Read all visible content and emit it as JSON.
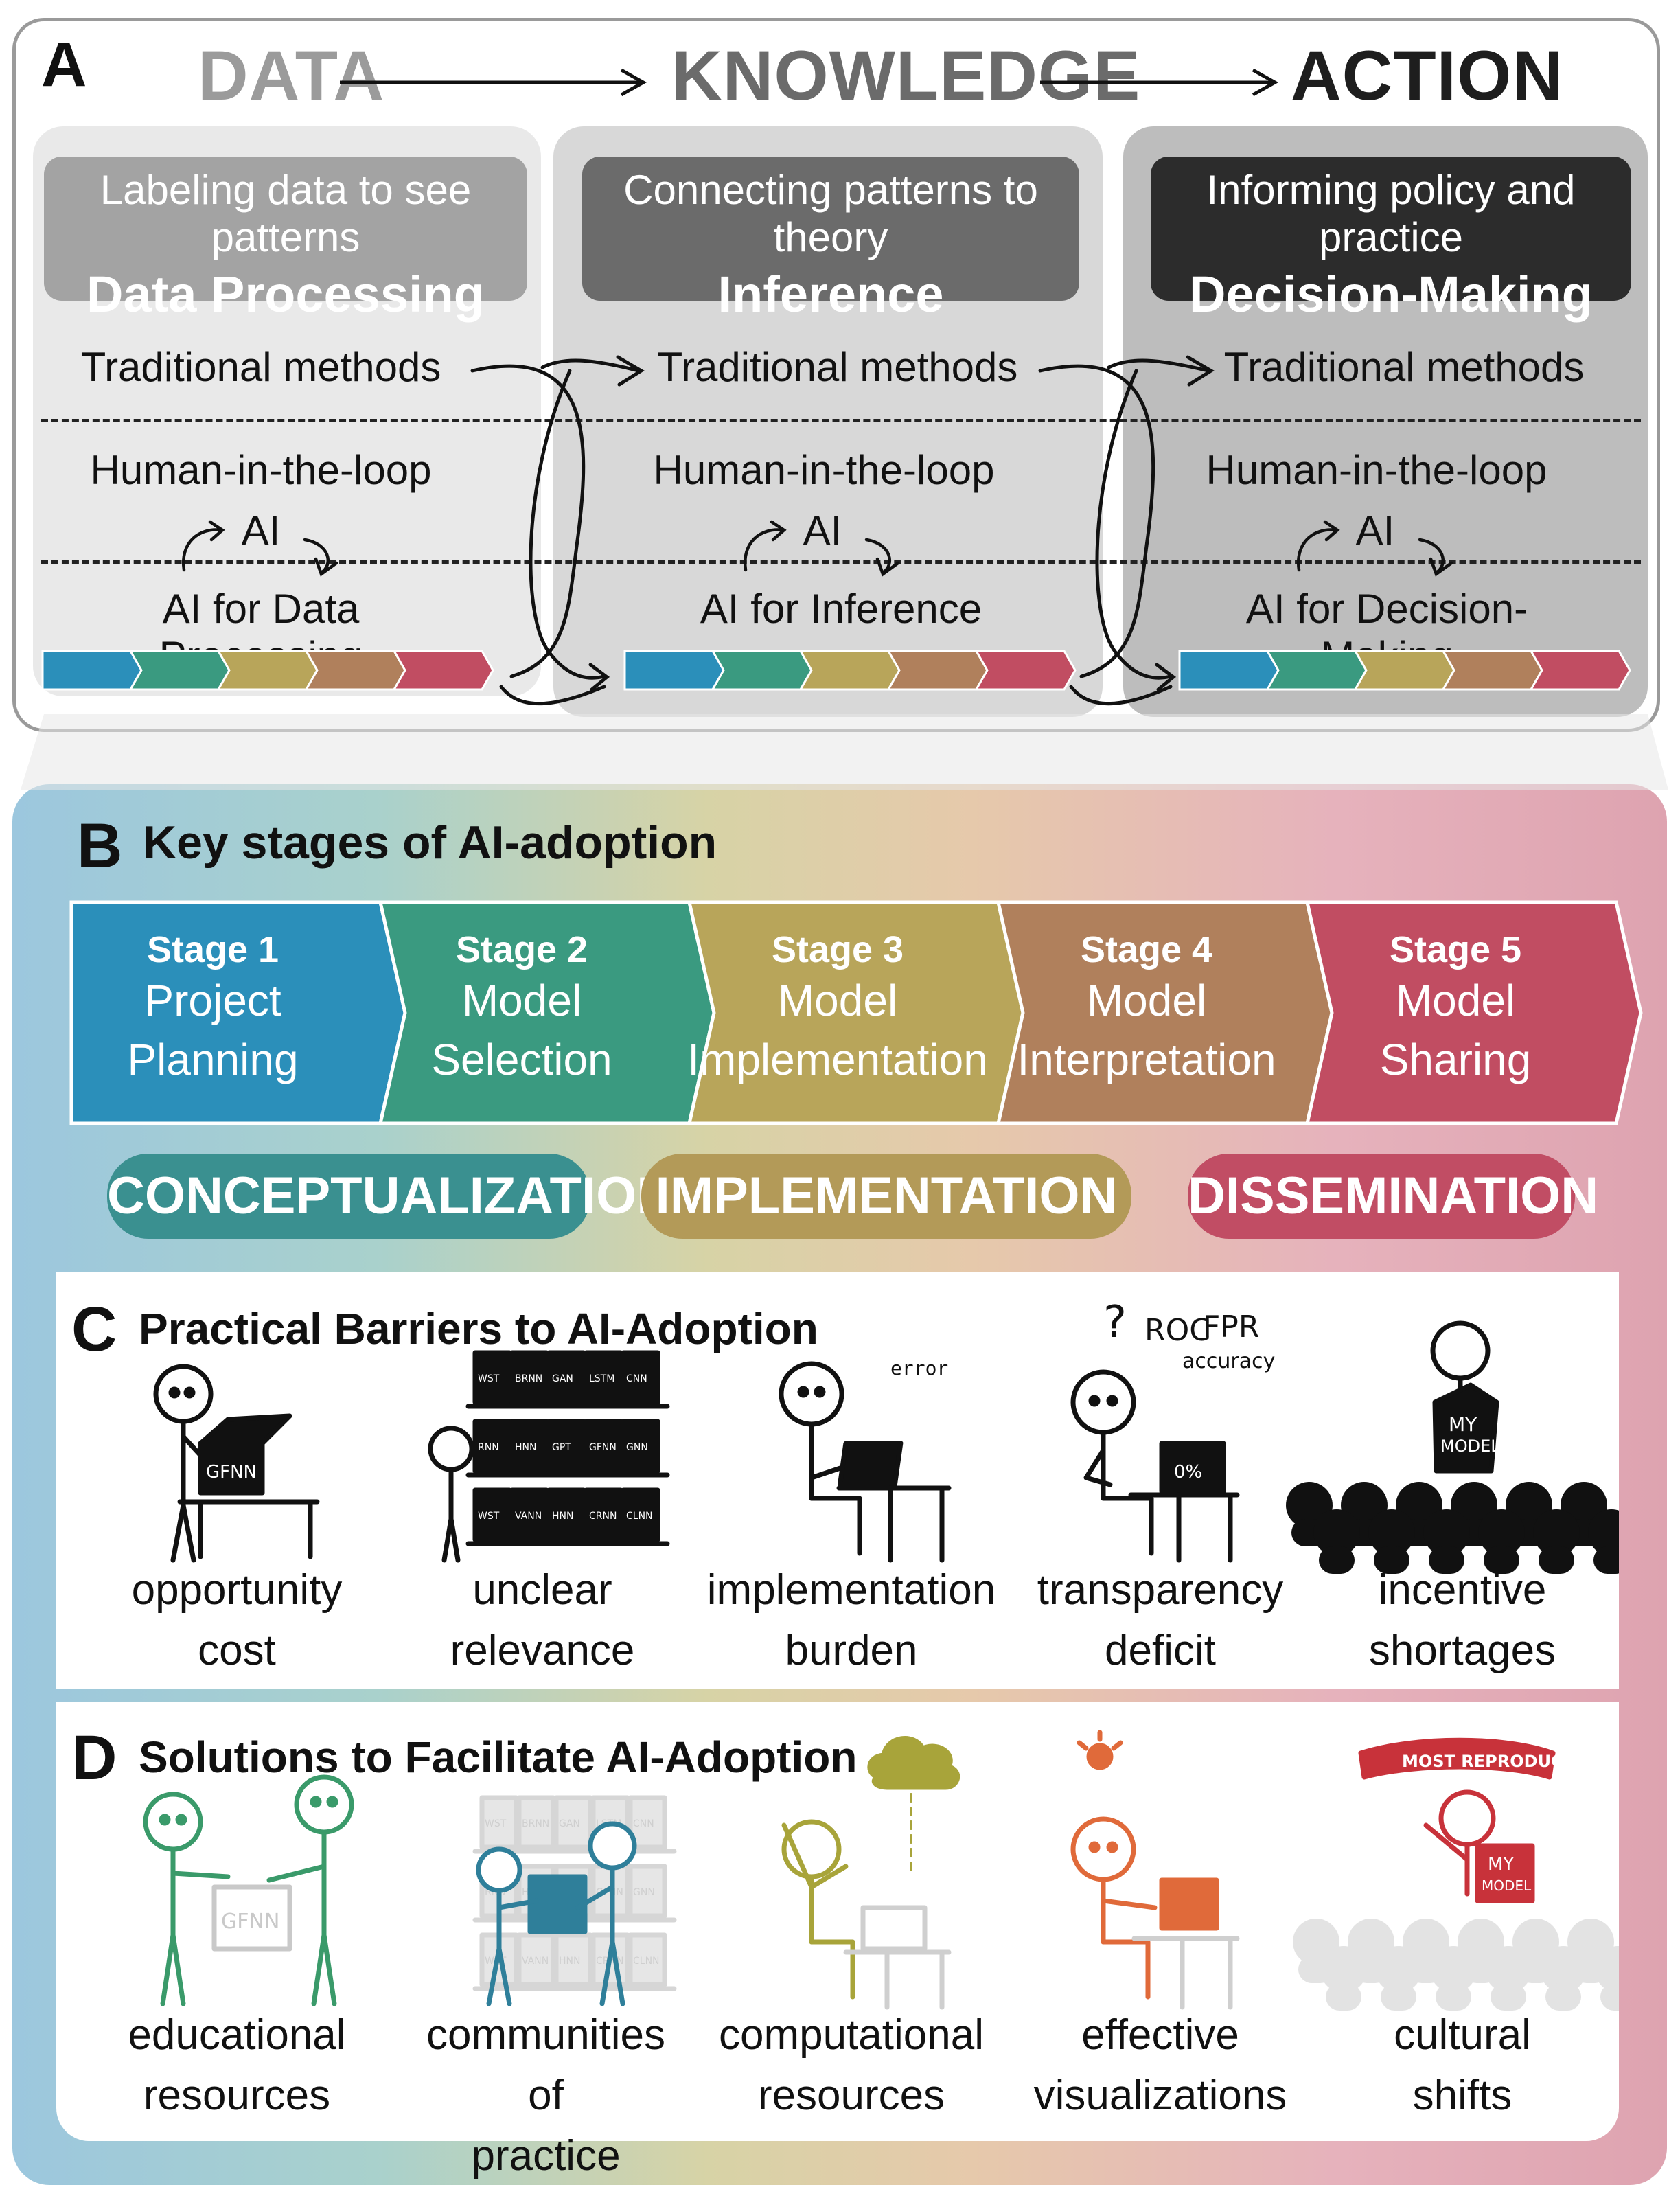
{
  "panel_a": {
    "letter": "A",
    "flow": [
      "DATA",
      "KNOWLEDGE",
      "ACTION"
    ],
    "columns": [
      {
        "subtitle": "Labeling data to see patterns",
        "title": "Data Processing",
        "traditional": "Traditional methods",
        "hitl": "Human-in-the-loop",
        "ai": "AI",
        "ai_for": "AI for Data Processing"
      },
      {
        "subtitle": "Connecting patterns to theory",
        "title": "Inference",
        "traditional": "Traditional methods",
        "hitl": "Human-in-the-loop",
        "ai": "AI",
        "ai_for": "AI for Inference"
      },
      {
        "subtitle": "Informing policy and practice",
        "title": "Decision-Making",
        "traditional": "Traditional methods",
        "hitl": "Human-in-the-loop",
        "ai": "AI",
        "ai_for": "AI for Decision-Making"
      }
    ]
  },
  "panel_b": {
    "letter": "B",
    "title": "Key stages of AI-adoption",
    "stages": [
      {
        "num": "Stage 1",
        "line1": "Project",
        "line2": "Planning",
        "color": "#2b8fba"
      },
      {
        "num": "Stage 2",
        "line1": "Model",
        "line2": "Selection",
        "color": "#3a9a80"
      },
      {
        "num": "Stage 3",
        "line1": "Model",
        "line2": "Implementation",
        "color": "#b8a55a"
      },
      {
        "num": "Stage 4",
        "line1": "Model",
        "line2": "Interpretation",
        "color": "#b0805c"
      },
      {
        "num": "Stage 5",
        "line1": "Model",
        "line2": "Sharing",
        "color": "#c14d62"
      }
    ],
    "phases": [
      {
        "label": "CONCEPTUALIZATION",
        "color": "#3a9090"
      },
      {
        "label": "IMPLEMENTATION",
        "color": "#b39a58"
      },
      {
        "label": "DISSEMINATION",
        "color": "#c14d64"
      }
    ]
  },
  "panel_c": {
    "letter": "C",
    "title": "Practical Barriers to AI-Adoption",
    "items": [
      {
        "line1": "opportunity",
        "line2": "cost"
      },
      {
        "line1": "unclear",
        "line2": "relevance"
      },
      {
        "line1": "implementation",
        "line2": "burden"
      },
      {
        "line1": "transparency",
        "line2": "deficit"
      },
      {
        "line1": "incentive",
        "line2": "shortages"
      }
    ],
    "sketch_text": {
      "box": "GFNN",
      "shelf": [
        "WST",
        "BRNN",
        "GAN",
        "LSTM",
        "CNN",
        "RNN",
        "HNN",
        "GPT",
        "GFNN",
        "GNN",
        "WST",
        "VANN",
        "HNN",
        "CRNN",
        "CLNN"
      ],
      "error": "error",
      "roc": "ROC",
      "fpr": "FPR",
      "accuracy": "accuracy",
      "percent": "0%",
      "q": "?",
      "my": "MY",
      "model": "MODEL"
    }
  },
  "panel_d": {
    "letter": "D",
    "title": "Solutions to Facilitate AI-Adoption",
    "items": [
      {
        "line1": "educational",
        "line2": "resources",
        "color": "#3a9a6a"
      },
      {
        "line1": "communities of",
        "line2": "practice",
        "color": "#2f7f9a"
      },
      {
        "line1": "computational",
        "line2": "resources",
        "color": "#a8a43a"
      },
      {
        "line1": "effective",
        "line2": "visualizations",
        "color": "#e06a3a"
      },
      {
        "line1": "cultural",
        "line2": "shifts",
        "color": "#c8323a"
      }
    ],
    "banner": "MOST REPRODUCIBLE",
    "box": "GFNN",
    "my": "MY",
    "model": "MODEL"
  }
}
